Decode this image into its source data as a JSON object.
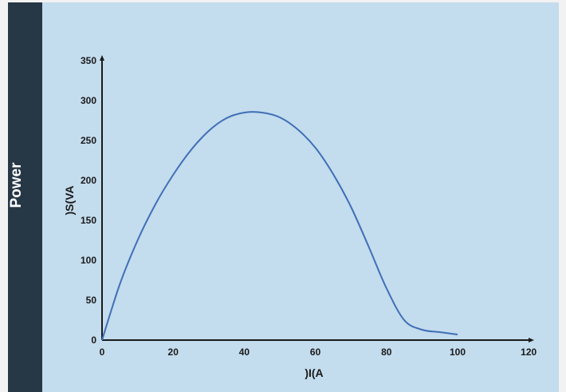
{
  "sidebar": {
    "label": "Power"
  },
  "colors": {
    "panel": "#c3dcee",
    "sidebar": "#263746",
    "curve": "#3f6fb5",
    "axis": "#1a1a1a"
  },
  "chart_data": {
    "type": "line",
    "xlabel": ")I(A",
    "ylabel": ")S(VA",
    "xlim": [
      0,
      120
    ],
    "ylim": [
      0,
      350
    ],
    "x_ticks": [
      0,
      20,
      40,
      60,
      80,
      100,
      120
    ],
    "y_ticks": [
      0,
      50,
      100,
      150,
      200,
      250,
      300,
      350
    ],
    "grid": false,
    "series": [
      {
        "x": [
          0,
          5,
          10,
          15,
          20,
          25,
          30,
          35,
          40,
          45,
          50,
          55,
          60,
          65,
          70,
          75,
          80,
          85,
          90,
          95,
          100
        ],
        "y": [
          0,
          70,
          125,
          170,
          207,
          238,
          262,
          278,
          285,
          285,
          279,
          264,
          241,
          208,
          167,
          117,
          65,
          25,
          13,
          10,
          7
        ]
      }
    ]
  }
}
